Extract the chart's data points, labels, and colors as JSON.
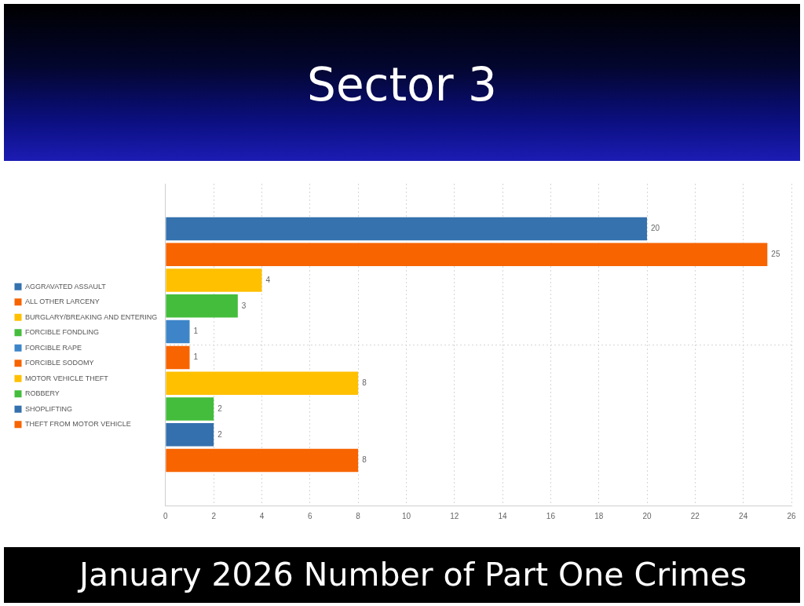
{
  "chart_data": {
    "type": "bar",
    "title": "Sector 3",
    "subtitle": "January 2026 Number of Part One Crimes",
    "orientation": "horizontal",
    "categories": [
      null
    ],
    "series": [
      {
        "name": "AGGRAVATED ASSAULT",
        "color": "#3572ae",
        "values": [
          20
        ]
      },
      {
        "name": "ALL OTHER LARCENY",
        "color": "#f76400",
        "values": [
          25
        ]
      },
      {
        "name": "BURGLARY/BREAKING AND ENTERING",
        "color": "#ffc000",
        "values": [
          4
        ]
      },
      {
        "name": "FORCIBLE FONDLING",
        "color": "#44bd3c",
        "values": [
          3
        ]
      },
      {
        "name": "FORCIBLE RAPE",
        "color": "#3d85c8",
        "values": [
          1
        ]
      },
      {
        "name": "FORCIBLE SODOMY",
        "color": "#f76400",
        "values": [
          1
        ]
      },
      {
        "name": "MOTOR VEHICLE THEFT",
        "color": "#ffc000",
        "values": [
          8
        ]
      },
      {
        "name": "ROBBERY",
        "color": "#44bd3c",
        "values": [
          2
        ]
      },
      {
        "name": "SHOPLIFTING",
        "color": "#3570ae",
        "values": [
          2
        ]
      },
      {
        "name": "THEFT FROM MOTOR VEHICLE",
        "color": "#f76400",
        "values": [
          8
        ]
      }
    ],
    "xlim": [
      0,
      26
    ],
    "xticks": [
      0,
      2,
      4,
      6,
      8,
      10,
      12,
      14,
      16,
      18,
      20,
      22,
      24,
      26
    ],
    "grid": true,
    "legend": "left",
    "data_labels": true
  }
}
